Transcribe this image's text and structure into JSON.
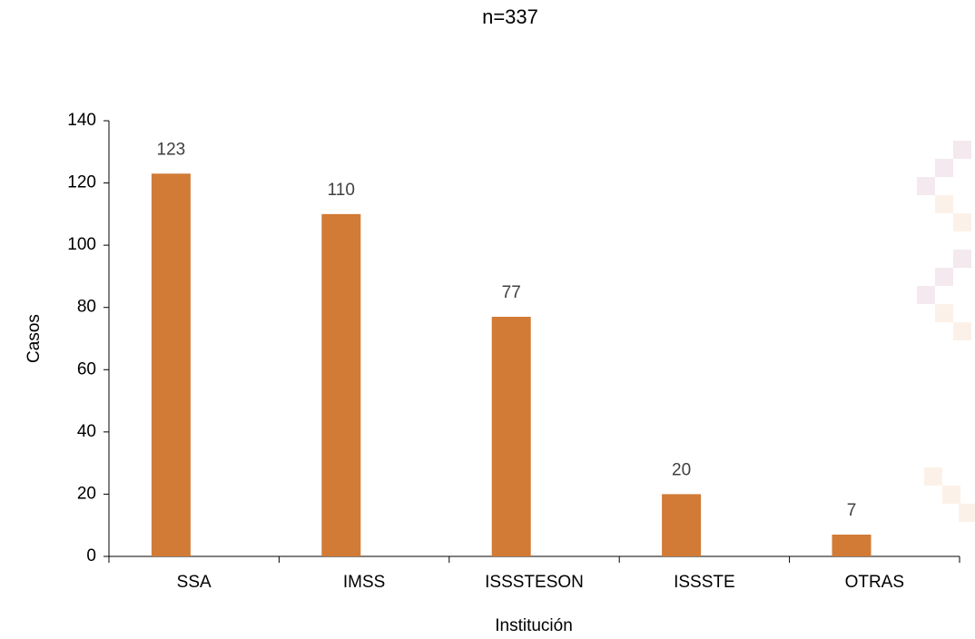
{
  "chart_data": {
    "type": "bar",
    "title": "n=337",
    "categories": [
      "SSA",
      "IMSS",
      "ISSSTESON",
      "ISSSTE",
      "OTRAS"
    ],
    "values": [
      123,
      110,
      77,
      20,
      7
    ],
    "color": "#d17b36",
    "x_label": "Institución",
    "y_label": "Casos",
    "ylim": [
      0,
      140
    ],
    "yticks": [
      0,
      20,
      40,
      60,
      80,
      100,
      120,
      140
    ],
    "grid": false,
    "data_labels": true
  }
}
